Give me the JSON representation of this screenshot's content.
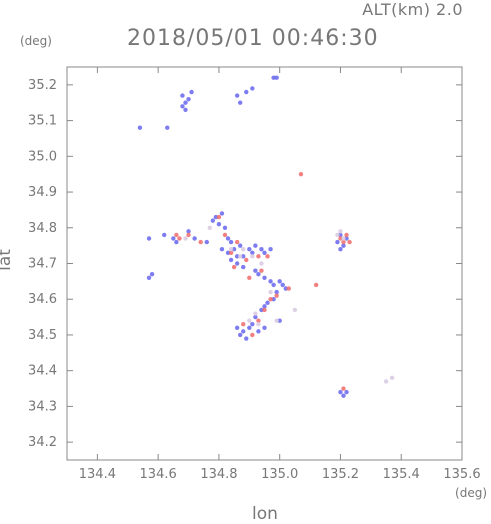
{
  "header": {
    "altitude_label": "ALT(km) 2.0",
    "timestamp": "2018/05/01 00:46:30"
  },
  "colors": {
    "axis": "#888888",
    "positive": "#f06a6a",
    "negative": "#6666ee",
    "weak": "#d8c8e0"
  },
  "chart_data": {
    "type": "scatter",
    "xlabel": "lon",
    "ylabel": "lat",
    "x_unit": "(deg)",
    "y_unit": "(deg)",
    "xlim": [
      134.3,
      135.6
    ],
    "ylim": [
      34.15,
      35.25
    ],
    "x_ticks": [
      "134.4",
      "134.6",
      "134.8",
      "135.0",
      "135.2",
      "135.4",
      "135.6"
    ],
    "y_ticks": [
      "34.2",
      "34.3",
      "34.4",
      "34.5",
      "34.6",
      "34.7",
      "34.8",
      "34.9",
      "35.0",
      "35.1",
      "35.2"
    ],
    "grid": false,
    "legend": "none",
    "series": [
      {
        "color_key": "negative",
        "points": [
          [
            134.54,
            35.08
          ],
          [
            134.68,
            35.14
          ],
          [
            134.69,
            35.15
          ],
          [
            134.7,
            35.16
          ],
          [
            134.69,
            35.13
          ],
          [
            134.71,
            35.18
          ],
          [
            134.68,
            35.17
          ],
          [
            134.86,
            35.17
          ],
          [
            134.87,
            35.15
          ],
          [
            134.89,
            35.18
          ],
          [
            134.91,
            35.19
          ],
          [
            134.98,
            35.22
          ],
          [
            134.99,
            35.22
          ],
          [
            134.63,
            35.08
          ],
          [
            134.57,
            34.77
          ],
          [
            134.57,
            34.66
          ],
          [
            134.58,
            34.67
          ],
          [
            134.62,
            34.78
          ],
          [
            134.65,
            34.77
          ],
          [
            134.66,
            34.76
          ],
          [
            134.7,
            34.79
          ],
          [
            134.72,
            34.77
          ],
          [
            134.76,
            34.76
          ],
          [
            134.78,
            34.82
          ],
          [
            134.79,
            34.83
          ],
          [
            134.81,
            34.84
          ],
          [
            134.8,
            34.81
          ],
          [
            134.82,
            34.8
          ],
          [
            134.83,
            34.77
          ],
          [
            134.84,
            34.76
          ],
          [
            134.85,
            34.74
          ],
          [
            134.83,
            34.73
          ],
          [
            134.81,
            34.74
          ],
          [
            134.86,
            34.72
          ],
          [
            134.87,
            34.75
          ],
          [
            134.88,
            34.72
          ],
          [
            134.9,
            34.74
          ],
          [
            134.91,
            34.73
          ],
          [
            134.92,
            34.75
          ],
          [
            134.94,
            34.74
          ],
          [
            134.95,
            34.73
          ],
          [
            134.97,
            34.74
          ],
          [
            134.84,
            34.71
          ],
          [
            134.86,
            34.7
          ],
          [
            134.88,
            34.69
          ],
          [
            134.92,
            34.68
          ],
          [
            134.93,
            34.67
          ],
          [
            134.95,
            34.66
          ],
          [
            134.97,
            34.65
          ],
          [
            134.98,
            34.64
          ],
          [
            135.0,
            34.65
          ],
          [
            135.01,
            34.64
          ],
          [
            135.02,
            34.63
          ],
          [
            134.99,
            34.62
          ],
          [
            134.98,
            34.6
          ],
          [
            134.96,
            34.59
          ],
          [
            134.95,
            34.58
          ],
          [
            134.94,
            34.57
          ],
          [
            134.92,
            34.55
          ],
          [
            134.91,
            34.53
          ],
          [
            134.9,
            34.52
          ],
          [
            134.88,
            34.51
          ],
          [
            134.87,
            34.5
          ],
          [
            134.89,
            34.49
          ],
          [
            134.86,
            34.52
          ],
          [
            134.93,
            34.51
          ],
          [
            134.95,
            34.52
          ],
          [
            135.0,
            34.54
          ],
          [
            135.19,
            34.76
          ],
          [
            135.2,
            34.78
          ],
          [
            135.21,
            34.75
          ],
          [
            135.2,
            34.74
          ],
          [
            135.22,
            34.77
          ],
          [
            135.2,
            34.34
          ],
          [
            135.21,
            34.33
          ],
          [
            135.22,
            34.34
          ]
        ]
      },
      {
        "color_key": "positive",
        "points": [
          [
            135.07,
            34.95
          ],
          [
            134.66,
            34.78
          ],
          [
            134.67,
            34.77
          ],
          [
            134.7,
            34.78
          ],
          [
            134.74,
            34.76
          ],
          [
            134.82,
            34.78
          ],
          [
            134.84,
            34.73
          ],
          [
            134.86,
            34.76
          ],
          [
            134.89,
            34.71
          ],
          [
            134.93,
            34.72
          ],
          [
            134.96,
            34.72
          ],
          [
            134.9,
            34.66
          ],
          [
            134.94,
            34.68
          ],
          [
            134.97,
            34.6
          ],
          [
            134.99,
            34.61
          ],
          [
            135.03,
            34.63
          ],
          [
            134.95,
            34.57
          ],
          [
            134.93,
            34.54
          ],
          [
            134.91,
            34.5
          ],
          [
            134.88,
            34.53
          ],
          [
            135.12,
            34.64
          ],
          [
            135.2,
            34.77
          ],
          [
            135.22,
            34.78
          ],
          [
            135.21,
            34.76
          ],
          [
            135.23,
            34.76
          ],
          [
            135.21,
            34.35
          ],
          [
            134.8,
            34.83
          ],
          [
            134.85,
            34.69
          ]
        ]
      },
      {
        "color_key": "weak",
        "points": [
          [
            134.84,
            34.74
          ],
          [
            134.88,
            34.74
          ],
          [
            134.91,
            34.72
          ],
          [
            134.94,
            34.7
          ],
          [
            134.92,
            34.56
          ],
          [
            134.93,
            34.53
          ],
          [
            134.9,
            34.54
          ],
          [
            135.2,
            34.79
          ],
          [
            135.21,
            34.77
          ],
          [
            135.19,
            34.78
          ],
          [
            134.97,
            34.62
          ],
          [
            134.87,
            34.72
          ],
          [
            135.35,
            34.37
          ],
          [
            135.37,
            34.38
          ],
          [
            135.05,
            34.57
          ],
          [
            134.99,
            34.54
          ],
          [
            134.69,
            34.77
          ],
          [
            134.77,
            34.8
          ]
        ]
      }
    ]
  }
}
